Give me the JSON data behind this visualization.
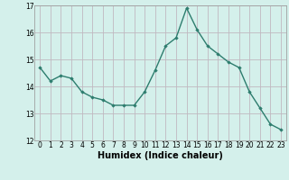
{
  "x": [
    0,
    1,
    2,
    3,
    4,
    5,
    6,
    7,
    8,
    9,
    10,
    11,
    12,
    13,
    14,
    15,
    16,
    17,
    18,
    19,
    20,
    21,
    22,
    23
  ],
  "y": [
    14.7,
    14.2,
    14.4,
    14.3,
    13.8,
    13.6,
    13.5,
    13.3,
    13.3,
    13.3,
    13.8,
    14.6,
    15.5,
    15.8,
    16.9,
    16.1,
    15.5,
    15.2,
    14.9,
    14.7,
    13.8,
    13.2,
    12.6,
    12.4
  ],
  "line_color": "#2d7d6e",
  "marker": "D",
  "marker_size": 1.8,
  "bg_color": "#d4f0eb",
  "grid_color": "#c0b8c0",
  "xlabel": "Humidex (Indice chaleur)",
  "ylim": [
    12,
    17
  ],
  "xlim": [
    -0.5,
    23.5
  ],
  "yticks": [
    12,
    13,
    14,
    15,
    16,
    17
  ],
  "xticks": [
    0,
    1,
    2,
    3,
    4,
    5,
    6,
    7,
    8,
    9,
    10,
    11,
    12,
    13,
    14,
    15,
    16,
    17,
    18,
    19,
    20,
    21,
    22,
    23
  ],
  "tick_fontsize": 5.5,
  "label_fontsize": 7,
  "line_width": 1.0,
  "spine_color": "#a0a0a0"
}
